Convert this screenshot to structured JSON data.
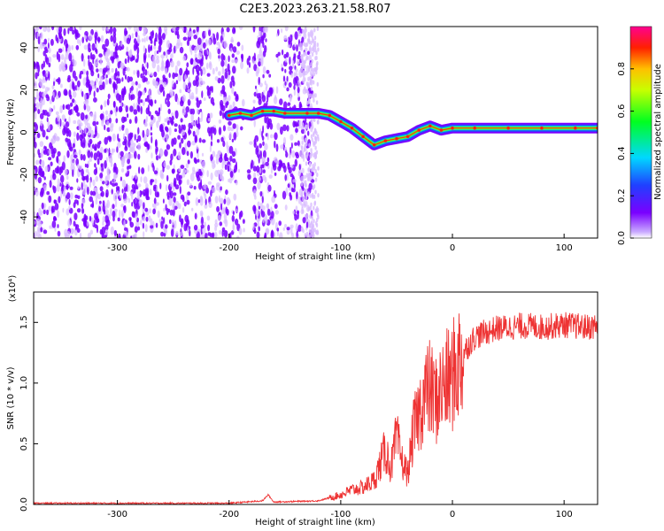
{
  "title": "C2E3.2023.263.21.58.R07",
  "colors": {
    "spectrogram_dark": "#7a00ff",
    "spectrogram_light": "#d8bcff",
    "snr_line": "#ee3333",
    "axis": "#000000"
  },
  "chart_data": [
    {
      "type": "heatmap",
      "title": "C2E3.2023.263.21.58.R07",
      "xlabel": "Height of straight line (km)",
      "ylabel": "Frequency (Hz)",
      "xlim": [
        -375,
        130
      ],
      "ylim": [
        -50,
        50
      ],
      "x_ticks": [
        -300,
        -200,
        -100,
        0,
        100
      ],
      "x_tick_labels": [
        "-300",
        "-200",
        "-100",
        "0",
        "100"
      ],
      "y_ticks": [
        -40,
        -20,
        0,
        20,
        40
      ],
      "y_tick_labels": [
        "-40",
        "-20",
        "0",
        "20",
        "40"
      ],
      "colorbar": {
        "label": "Normalized spectral amplitude",
        "range": [
          0,
          1
        ],
        "ticks": [
          0.0,
          0.2,
          0.4,
          0.6,
          0.8
        ],
        "tick_labels": [
          "0.0",
          "0.2",
          "0.4",
          "0.6",
          "0.8"
        ],
        "colormap": "rainbow (purple to red)"
      },
      "noise_region_x": [
        -375,
        -125
      ],
      "ridge": [
        {
          "x": -200,
          "freq": 8
        },
        {
          "x": -190,
          "freq": 9
        },
        {
          "x": -180,
          "freq": 8
        },
        {
          "x": -170,
          "freq": 10
        },
        {
          "x": -160,
          "freq": 10
        },
        {
          "x": -150,
          "freq": 9
        },
        {
          "x": -130,
          "freq": 9
        },
        {
          "x": -120,
          "freq": 9
        },
        {
          "x": -110,
          "freq": 8
        },
        {
          "x": -100,
          "freq": 5
        },
        {
          "x": -90,
          "freq": 2
        },
        {
          "x": -80,
          "freq": -2
        },
        {
          "x": -70,
          "freq": -6
        },
        {
          "x": -60,
          "freq": -4
        },
        {
          "x": -50,
          "freq": -3
        },
        {
          "x": -40,
          "freq": -2
        },
        {
          "x": -30,
          "freq": 1
        },
        {
          "x": -20,
          "freq": 3
        },
        {
          "x": -10,
          "freq": 1
        },
        {
          "x": 0,
          "freq": 2
        },
        {
          "x": 20,
          "freq": 2
        },
        {
          "x": 50,
          "freq": 2
        },
        {
          "x": 80,
          "freq": 2
        },
        {
          "x": 110,
          "freq": 2
        },
        {
          "x": 130,
          "freq": 2
        }
      ]
    },
    {
      "type": "line",
      "xlabel": "Height of straight line (km)",
      "ylabel": "SNR (10 * v/v)",
      "y_multiplier_label": "(x10⁴)",
      "xlim": [
        -375,
        130
      ],
      "ylim": [
        0,
        1.75
      ],
      "x_ticks": [
        -300,
        -200,
        -100,
        0,
        100
      ],
      "x_tick_labels": [
        "-300",
        "-200",
        "-100",
        "0",
        "100"
      ],
      "y_ticks": [
        0.0,
        0.5,
        1.0,
        1.5
      ],
      "y_tick_labels": [
        "0.0",
        "0.5",
        "1.0",
        "1.5"
      ],
      "series": [
        {
          "color": "#ee3333",
          "x": [
            -375,
            -300,
            -200,
            -170,
            -165,
            -160,
            -120,
            -100,
            -90,
            -80,
            -70,
            -60,
            -55,
            -50,
            -45,
            -40,
            -35,
            -30,
            -25,
            -20,
            -15,
            -10,
            -5,
            0,
            5,
            10,
            15,
            20,
            25,
            30,
            40,
            50,
            60,
            70,
            80,
            90,
            100,
            110,
            120,
            130
          ],
          "y": [
            0.01,
            0.01,
            0.01,
            0.03,
            0.08,
            0.02,
            0.03,
            0.08,
            0.12,
            0.14,
            0.2,
            0.45,
            0.3,
            0.55,
            0.35,
            0.25,
            0.6,
            0.75,
            0.9,
            0.95,
            0.85,
            0.95,
            1.0,
            1.05,
            1.15,
            1.25,
            1.32,
            1.38,
            1.4,
            1.42,
            1.45,
            1.46,
            1.47,
            1.47,
            1.46,
            1.47,
            1.48,
            1.47,
            1.46,
            1.47
          ]
        }
      ]
    }
  ]
}
